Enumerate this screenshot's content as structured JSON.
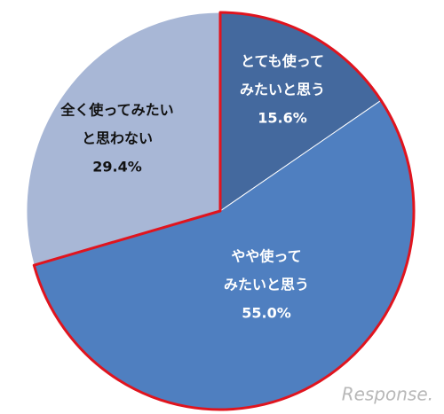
{
  "chart_data": {
    "type": "pie",
    "categories": [
      [
        "とても使って",
        "みたいと思う"
      ],
      [
        "やや使って",
        "みたいと思う"
      ],
      [
        "全く使ってみたい",
        "と思わない"
      ]
    ],
    "values": [
      15.6,
      55.0,
      29.4
    ],
    "value_labels": [
      "15.6%",
      "55.0%",
      "29.4%"
    ],
    "colors": [
      "#44699e",
      "#4f7fc0",
      "#a8b7d6"
    ],
    "label_colors": [
      "#ffffff",
      "#ffffff",
      "#111111"
    ],
    "highlight_color": "#e0141e",
    "watermark": "Response."
  }
}
